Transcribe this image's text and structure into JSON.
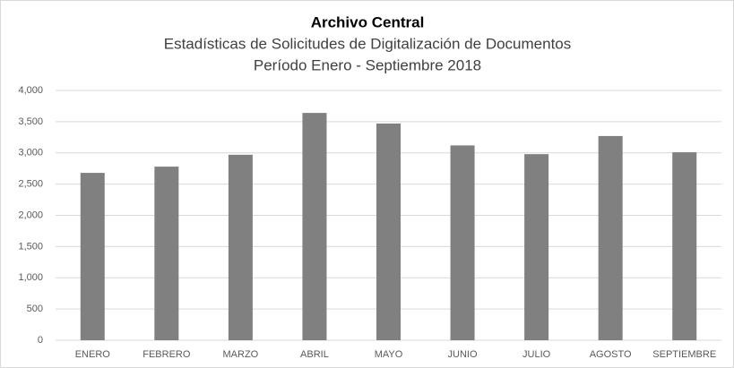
{
  "chart_data": {
    "type": "bar",
    "title": "Archivo Central",
    "subtitle": [
      "Estadísticas de Solicitudes de Digitalización de Documentos",
      "Período Enero - Septiembre 2018"
    ],
    "categories": [
      "ENERO",
      "FEBRERO",
      "MARZO",
      "ABRIL",
      "MAYO",
      "JUNIO",
      "JULIO",
      "AGOSTO",
      "SEPTIEMBRE"
    ],
    "values": [
      2680,
      2780,
      2970,
      3640,
      3470,
      3120,
      2980,
      3270,
      3010
    ],
    "color": "#808080",
    "ylim": [
      0,
      4000
    ],
    "yticks": [
      0,
      500,
      {
        "value": 1000,
        "label": "1,000"
      },
      {
        "value": 1500,
        "label": "1,500"
      },
      {
        "value": 2000,
        "label": "2,000"
      },
      {
        "value": 2500,
        "label": "2,500"
      },
      {
        "value": 3000,
        "label": "3,000"
      },
      {
        "value": 3500,
        "label": "3,500"
      },
      {
        "value": 4000,
        "label": "4,000"
      }
    ],
    "grid": true
  }
}
